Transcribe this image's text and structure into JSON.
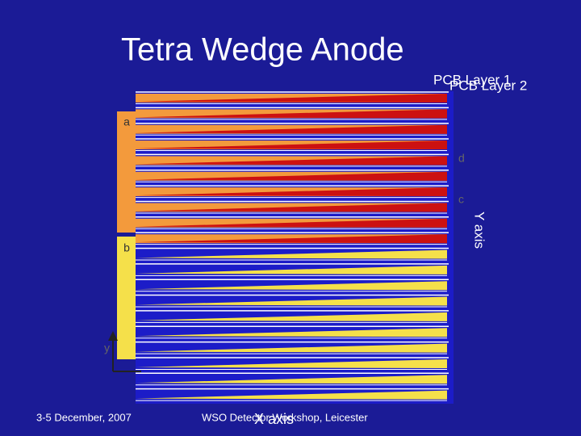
{
  "header": {
    "title": "Tetra Wedge Anode"
  },
  "layers": {
    "layer1": "PCB Layer 1",
    "layer2": "PCB Layer 2"
  },
  "regions": {
    "a": "a",
    "b": "b",
    "c": "c",
    "d": "d"
  },
  "axes": {
    "y_axis": "Y axis",
    "x_axis": "X axis",
    "y_small": "y"
  },
  "footer": {
    "date": "3-5 December, 2007",
    "event": "WSO Detector Workshop, Leicester"
  }
}
